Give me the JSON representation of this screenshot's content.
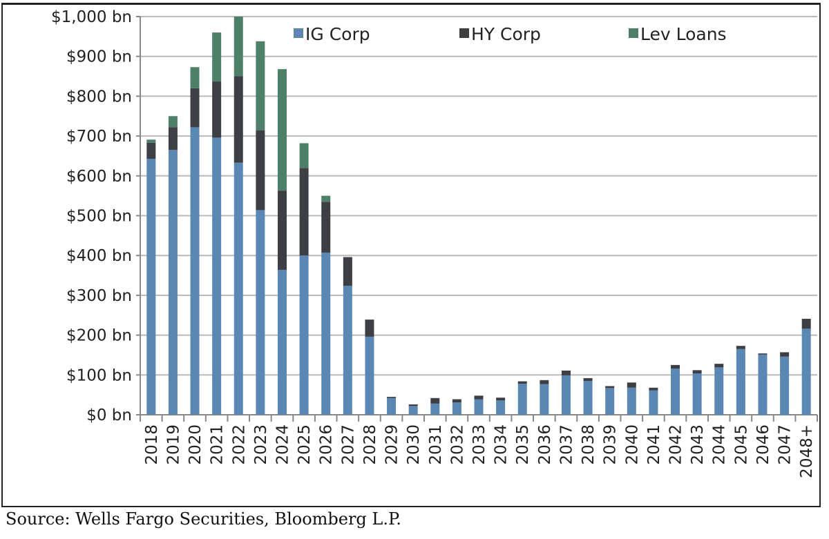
{
  "chart_data": {
    "type": "bar",
    "stacked": true,
    "categories": [
      "2018",
      "2019",
      "2020",
      "2021",
      "2022",
      "2023",
      "2024",
      "2025",
      "2026",
      "2027",
      "2028",
      "2029",
      "2030",
      "2031",
      "2032",
      "2033",
      "2034",
      "2035",
      "2036",
      "2037",
      "2038",
      "2039",
      "2040",
      "2041",
      "2042",
      "2043",
      "2044",
      "2045",
      "2046",
      "2047",
      "2048+"
    ],
    "series": [
      {
        "name": "IG Corp",
        "color": "#5b87b5",
        "values": [
          643,
          665,
          722,
          696,
          633,
          514,
          364,
          400,
          407,
          324,
          196,
          42,
          22,
          28,
          31,
          39,
          36,
          78,
          77,
          99,
          85,
          67,
          68,
          61,
          116,
          104,
          119,
          165,
          151,
          146,
          216
        ]
      },
      {
        "name": "HY Corp",
        "color": "#3d3f44",
        "values": [
          40,
          57,
          98,
          141,
          217,
          200,
          199,
          220,
          128,
          72,
          43,
          3,
          4,
          14,
          8,
          9,
          7,
          6,
          10,
          12,
          7,
          5,
          13,
          7,
          9,
          8,
          9,
          8,
          3,
          11,
          25
        ]
      },
      {
        "name": "Lev Loans",
        "color": "#4e8069",
        "values": [
          8,
          28,
          53,
          123,
          150,
          224,
          305,
          62,
          15,
          0,
          0,
          0,
          0,
          0,
          0,
          0,
          0,
          0,
          0,
          0,
          0,
          0,
          0,
          0,
          0,
          0,
          0,
          0,
          0,
          0,
          0
        ]
      }
    ],
    "yticks": [
      "$0 bn",
      "$100 bn",
      "$200 bn",
      "$300 bn",
      "$400 bn",
      "$500 bn",
      "$600 bn",
      "$700 bn",
      "$800 bn",
      "$900 bn",
      "$1,000 bn"
    ],
    "ylim": [
      0,
      1000
    ],
    "grid": true,
    "legend": "top-right",
    "xlabel": "",
    "ylabel": ""
  },
  "source": "Source: Wells Fargo Securities, Bloomberg L.P."
}
